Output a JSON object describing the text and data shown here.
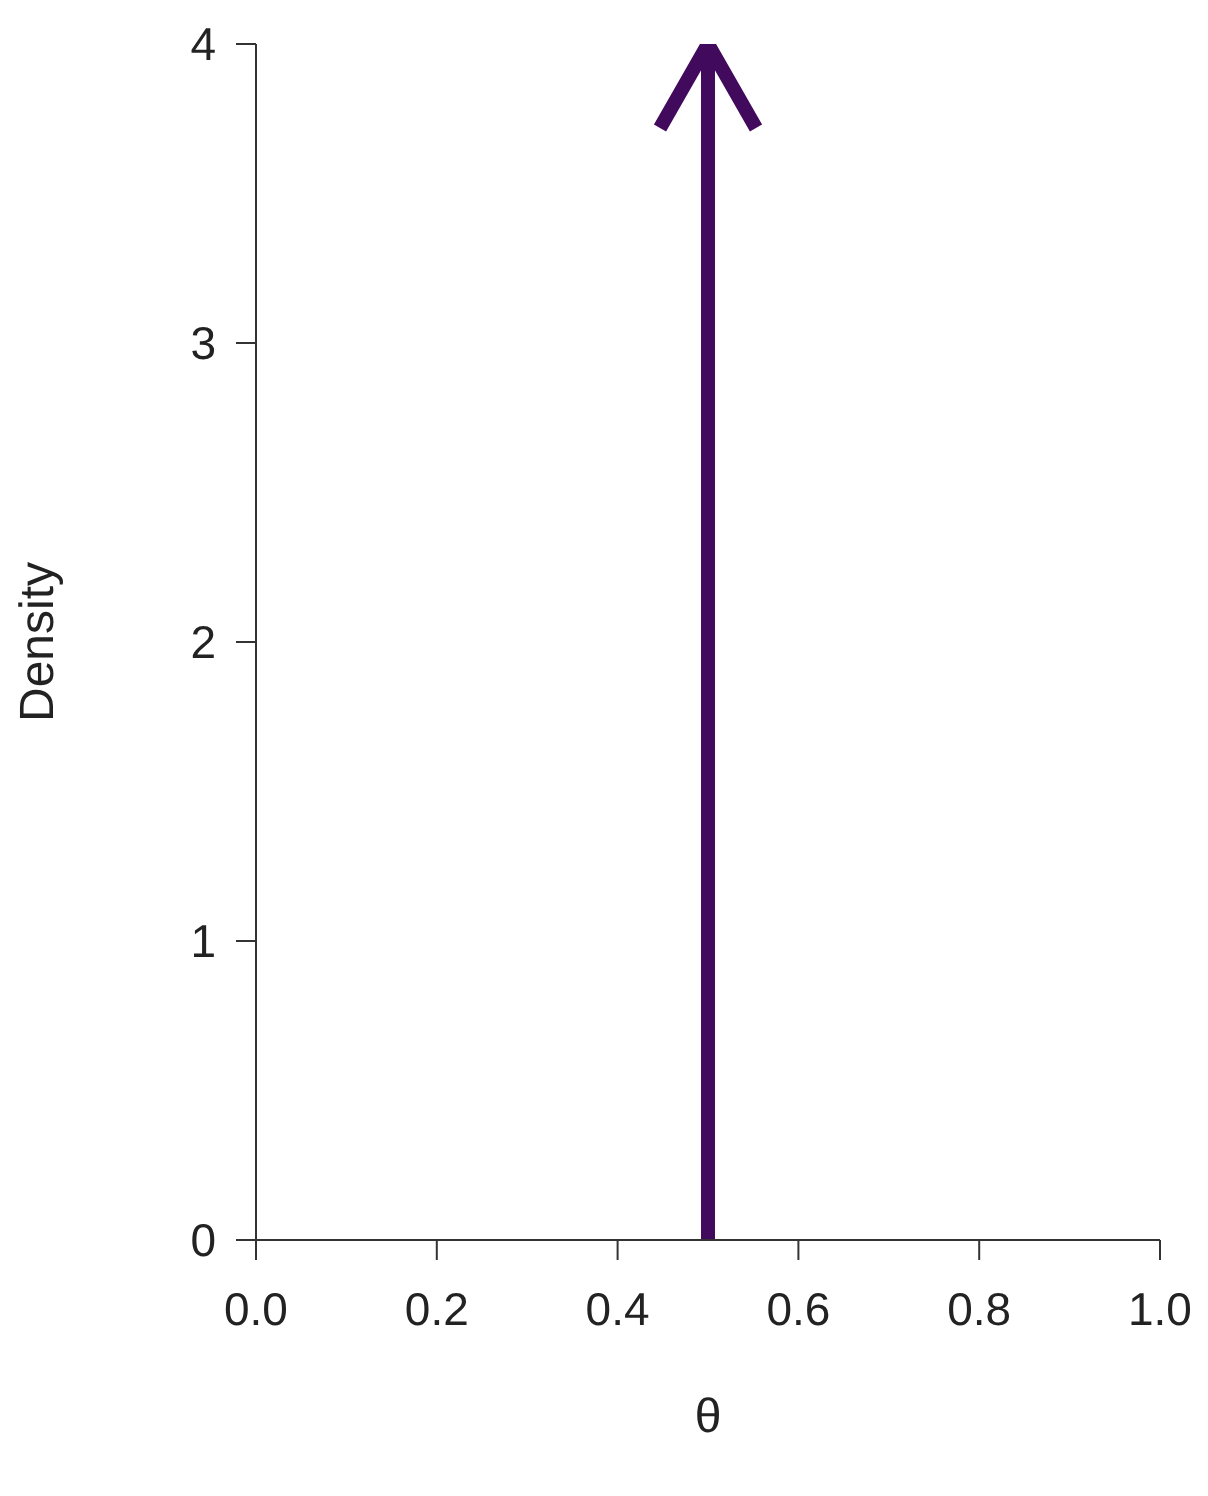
{
  "chart_data": {
    "type": "line",
    "xlabel": "θ",
    "ylabel": "Density",
    "series": [
      {
        "color": "#420a5c",
        "x": [
          0.5,
          0.5
        ],
        "values": [
          0,
          4
        ]
      }
    ],
    "xlim": [
      0,
      1
    ],
    "xticks": [
      {
        "value": 0,
        "label": "0.0"
      },
      {
        "value": 0.2,
        "label": "0.2"
      },
      {
        "value": 0.4,
        "label": "0.4"
      },
      {
        "value": 0.6,
        "label": "0.6"
      },
      {
        "value": 0.8,
        "label": "0.8"
      },
      {
        "value": 1,
        "label": "1.0"
      }
    ],
    "ylim": [
      0,
      4
    ],
    "yticks": [
      0,
      1,
      2,
      3,
      4
    ],
    "grid": false
  }
}
